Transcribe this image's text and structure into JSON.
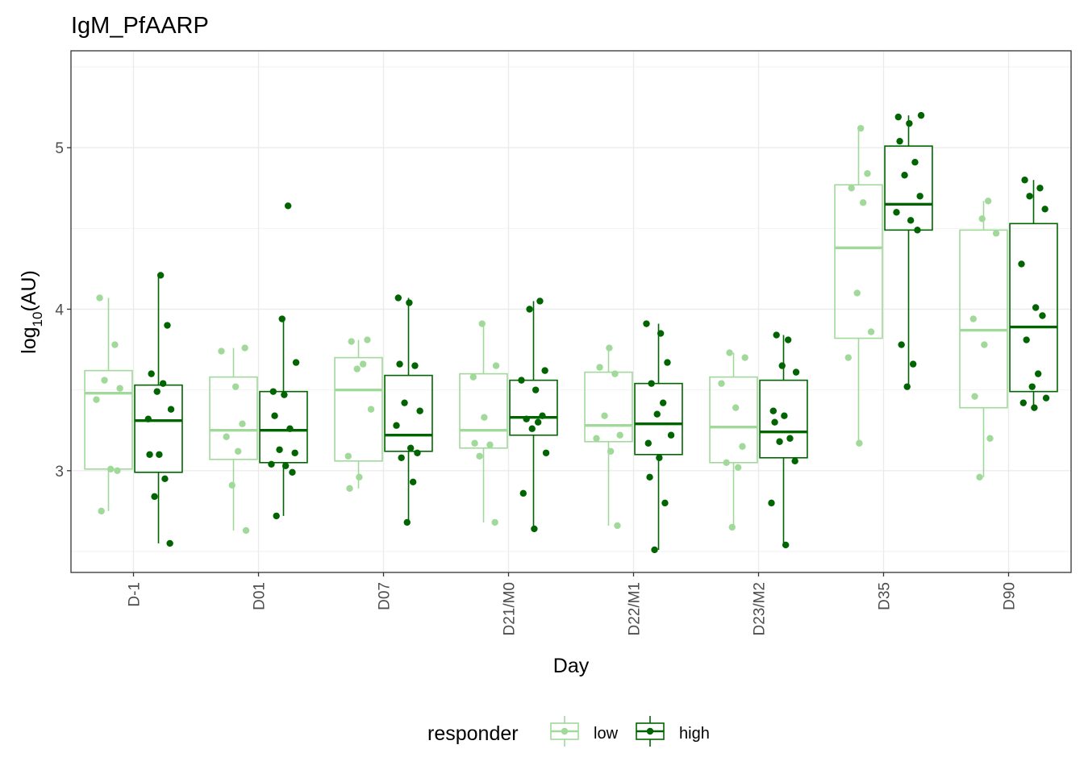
{
  "chart_data": {
    "type": "box",
    "title": "IgM_PfAARP",
    "xlabel": "Day",
    "ylabel": {
      "base": "log",
      "sub": "10",
      "rest": "(AU)"
    },
    "ylim": [
      2.37,
      5.6
    ],
    "yticks": [
      3,
      4,
      5
    ],
    "grid": true,
    "legend_position": "bottom",
    "legend": {
      "title": "responder"
    },
    "categories": [
      "D-1",
      "D01",
      "D07",
      "D21/M0",
      "D22/M1",
      "D23/M2",
      "D35",
      "D90"
    ],
    "series": [
      {
        "name": "low",
        "color": "#a1d99b",
        "boxes": [
          {
            "lower_whisker": 2.75,
            "q1": 3.01,
            "median": 3.48,
            "q3": 3.62,
            "upper_whisker": 4.07,
            "points": [
              4.07,
              3.78,
              3.56,
              3.51,
              3.44,
              3.01,
              3.0,
              2.75
            ]
          },
          {
            "lower_whisker": 2.63,
            "q1": 3.07,
            "median": 3.25,
            "q3": 3.58,
            "upper_whisker": 3.76,
            "points": [
              3.76,
              3.74,
              3.52,
              3.29,
              3.21,
              3.12,
              2.91,
              2.63
            ]
          },
          {
            "lower_whisker": 2.89,
            "q1": 3.06,
            "median": 3.5,
            "q3": 3.7,
            "upper_whisker": 3.81,
            "points": [
              3.81,
              3.8,
              3.66,
              3.63,
              3.38,
              3.09,
              2.96,
              2.89
            ]
          },
          {
            "lower_whisker": 2.68,
            "q1": 3.14,
            "median": 3.25,
            "q3": 3.6,
            "upper_whisker": 3.91,
            "points": [
              3.91,
              3.65,
              3.58,
              3.33,
              3.17,
              3.16,
              3.09,
              2.68
            ]
          },
          {
            "lower_whisker": 2.66,
            "q1": 3.18,
            "median": 3.28,
            "q3": 3.61,
            "upper_whisker": 3.76,
            "points": [
              3.76,
              3.64,
              3.6,
              3.34,
              3.22,
              3.2,
              3.12,
              2.66
            ]
          },
          {
            "lower_whisker": 2.65,
            "q1": 3.05,
            "median": 3.27,
            "q3": 3.58,
            "upper_whisker": 3.73,
            "points": [
              3.73,
              3.7,
              3.54,
              3.39,
              3.15,
              3.05,
              3.02,
              2.65
            ]
          },
          {
            "lower_whisker": 3.17,
            "q1": 3.82,
            "median": 4.38,
            "q3": 4.77,
            "upper_whisker": 5.12,
            "points": [
              5.12,
              4.84,
              4.75,
              4.66,
              4.1,
              3.86,
              3.7,
              3.17
            ]
          },
          {
            "lower_whisker": 2.96,
            "q1": 3.39,
            "median": 3.87,
            "q3": 4.49,
            "upper_whisker": 4.67,
            "points": [
              4.67,
              4.56,
              4.47,
              3.94,
              3.78,
              3.46,
              3.2,
              2.96
            ]
          }
        ]
      },
      {
        "name": "high",
        "color": "#006400",
        "boxes": [
          {
            "lower_whisker": 2.55,
            "q1": 2.99,
            "median": 3.31,
            "q3": 3.53,
            "upper_whisker": 4.21,
            "points": [
              4.21,
              3.9,
              3.6,
              3.54,
              3.49,
              3.38,
              3.32,
              3.1,
              3.1,
              2.95,
              2.84,
              2.55
            ]
          },
          {
            "lower_whisker": 2.72,
            "q1": 3.05,
            "median": 3.25,
            "q3": 3.49,
            "upper_whisker": 3.94,
            "points": [
              4.64,
              3.94,
              3.67,
              3.49,
              3.47,
              3.34,
              3.26,
              3.13,
              3.11,
              3.04,
              3.03,
              2.99,
              2.72
            ]
          },
          {
            "lower_whisker": 2.68,
            "q1": 3.12,
            "median": 3.22,
            "q3": 3.59,
            "upper_whisker": 4.07,
            "points": [
              4.07,
              4.04,
              3.66,
              3.65,
              3.42,
              3.37,
              3.28,
              3.14,
              3.11,
              3.08,
              2.93,
              2.68
            ]
          },
          {
            "lower_whisker": 2.64,
            "q1": 3.22,
            "median": 3.33,
            "q3": 3.56,
            "upper_whisker": 4.05,
            "points": [
              4.05,
              4.0,
              3.62,
              3.56,
              3.5,
              3.34,
              3.32,
              3.3,
              3.26,
              3.11,
              2.86,
              2.64
            ]
          },
          {
            "lower_whisker": 2.51,
            "q1": 3.1,
            "median": 3.29,
            "q3": 3.54,
            "upper_whisker": 3.91,
            "points": [
              3.91,
              3.85,
              3.67,
              3.54,
              3.42,
              3.35,
              3.22,
              3.17,
              3.08,
              2.96,
              2.8,
              2.51
            ]
          },
          {
            "lower_whisker": 2.54,
            "q1": 3.08,
            "median": 3.24,
            "q3": 3.56,
            "upper_whisker": 3.84,
            "points": [
              3.84,
              3.81,
              3.65,
              3.61,
              3.37,
              3.34,
              3.3,
              3.2,
              3.18,
              3.06,
              2.8,
              2.54
            ]
          },
          {
            "lower_whisker": 3.52,
            "q1": 4.49,
            "median": 4.65,
            "q3": 5.01,
            "upper_whisker": 5.2,
            "points": [
              5.2,
              5.19,
              5.15,
              5.04,
              4.91,
              4.83,
              4.7,
              4.6,
              4.55,
              4.49,
              3.78,
              3.66,
              3.52
            ]
          },
          {
            "lower_whisker": 3.39,
            "q1": 3.49,
            "median": 3.89,
            "q3": 4.53,
            "upper_whisker": 4.8,
            "points": [
              4.8,
              4.75,
              4.7,
              4.62,
              4.28,
              4.01,
              3.96,
              3.81,
              3.6,
              3.52,
              3.45,
              3.42,
              3.39
            ]
          }
        ]
      }
    ]
  }
}
